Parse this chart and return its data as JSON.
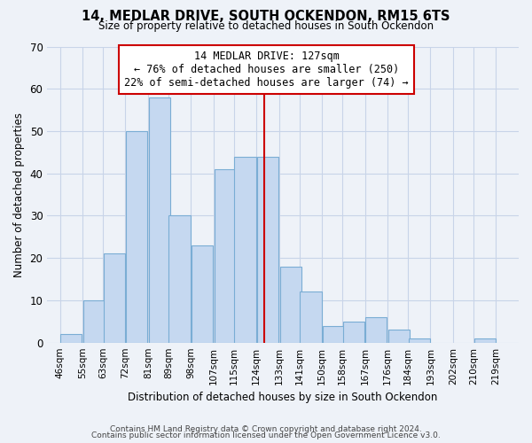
{
  "title_line1": "14, MEDLAR DRIVE, SOUTH OCKENDON, RM15 6TS",
  "title_line2": "Size of property relative to detached houses in South Ockendon",
  "xlabel": "Distribution of detached houses by size in South Ockendon",
  "ylabel": "Number of detached properties",
  "bar_left_edges": [
    46,
    55,
    63,
    72,
    81,
    89,
    98,
    107,
    115,
    124,
    133,
    141,
    150,
    158,
    167,
    176,
    184,
    193,
    202,
    210
  ],
  "bar_heights": [
    2,
    10,
    21,
    50,
    58,
    30,
    23,
    41,
    44,
    44,
    18,
    12,
    4,
    5,
    6,
    3,
    1,
    0,
    0,
    1
  ],
  "bin_width": 9,
  "tick_labels": [
    "46sqm",
    "55sqm",
    "63sqm",
    "72sqm",
    "81sqm",
    "89sqm",
    "98sqm",
    "107sqm",
    "115sqm",
    "124sqm",
    "133sqm",
    "141sqm",
    "150sqm",
    "158sqm",
    "167sqm",
    "176sqm",
    "184sqm",
    "193sqm",
    "202sqm",
    "210sqm",
    "219sqm"
  ],
  "tick_positions": [
    46,
    55,
    63,
    72,
    81,
    89,
    98,
    107,
    115,
    124,
    133,
    141,
    150,
    158,
    167,
    176,
    184,
    193,
    202,
    210,
    219
  ],
  "ylim": [
    0,
    70
  ],
  "yticks": [
    0,
    10,
    20,
    30,
    40,
    50,
    60,
    70
  ],
  "property_line_x": 127,
  "bar_color": "#c5d8f0",
  "bar_edge_color": "#7aadd4",
  "line_color": "#cc0000",
  "annotation_title": "14 MEDLAR DRIVE: 127sqm",
  "annotation_line1": "← 76% of detached houses are smaller (250)",
  "annotation_line2": "22% of semi-detached houses are larger (74) →",
  "annotation_box_color": "#ffffff",
  "annotation_box_edge": "#cc0000",
  "footer_line1": "Contains HM Land Registry data © Crown copyright and database right 2024.",
  "footer_line2": "Contains public sector information licensed under the Open Government Licence v3.0.",
  "bg_color": "#eef2f8",
  "plot_bg_color": "#eef2f8",
  "grid_color": "#c8d4e8"
}
